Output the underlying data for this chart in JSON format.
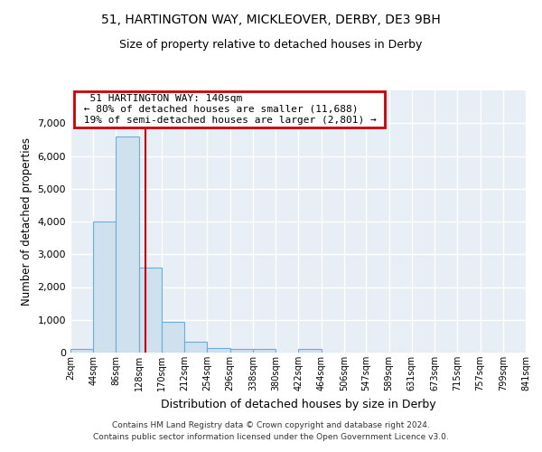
{
  "title1": "51, HARTINGTON WAY, MICKLEOVER, DERBY, DE3 9BH",
  "title2": "Size of property relative to detached houses in Derby",
  "xlabel": "Distribution of detached houses by size in Derby",
  "ylabel": "Number of detached properties",
  "bin_edges": [
    2,
    44,
    86,
    128,
    170,
    212,
    254,
    296,
    338,
    380,
    422,
    464,
    506,
    547,
    589,
    631,
    673,
    715,
    757,
    799,
    841
  ],
  "bar_heights": [
    100,
    4000,
    6600,
    2600,
    950,
    320,
    130,
    100,
    100,
    0,
    105,
    0,
    0,
    0,
    0,
    0,
    0,
    0,
    0,
    0
  ],
  "bar_facecolor": "#cfe0ef",
  "bar_edgecolor": "#6aaed6",
  "vline_x": 140,
  "vline_color": "#cc0000",
  "annotation_title": "51 HARTINGTON WAY: 140sqm",
  "annotation_line1": "← 80% of detached houses are smaller (11,688)",
  "annotation_line2": "19% of semi-detached houses are larger (2,801) →",
  "annotation_box_color": "#cc0000",
  "ylim": [
    0,
    8000
  ],
  "yticks": [
    0,
    1000,
    2000,
    3000,
    4000,
    5000,
    6000,
    7000,
    8000
  ],
  "background_color": "#e8eef5",
  "grid_color": "#ffffff",
  "footer": "Contains HM Land Registry data © Crown copyright and database right 2024.\nContains public sector information licensed under the Open Government Licence v3.0.",
  "tick_labels": [
    "2sqm",
    "44sqm",
    "86sqm",
    "128sqm",
    "170sqm",
    "212sqm",
    "254sqm",
    "296sqm",
    "338sqm",
    "380sqm",
    "422sqm",
    "464sqm",
    "506sqm",
    "547sqm",
    "589sqm",
    "631sqm",
    "673sqm",
    "715sqm",
    "757sqm",
    "799sqm",
    "841sqm"
  ]
}
